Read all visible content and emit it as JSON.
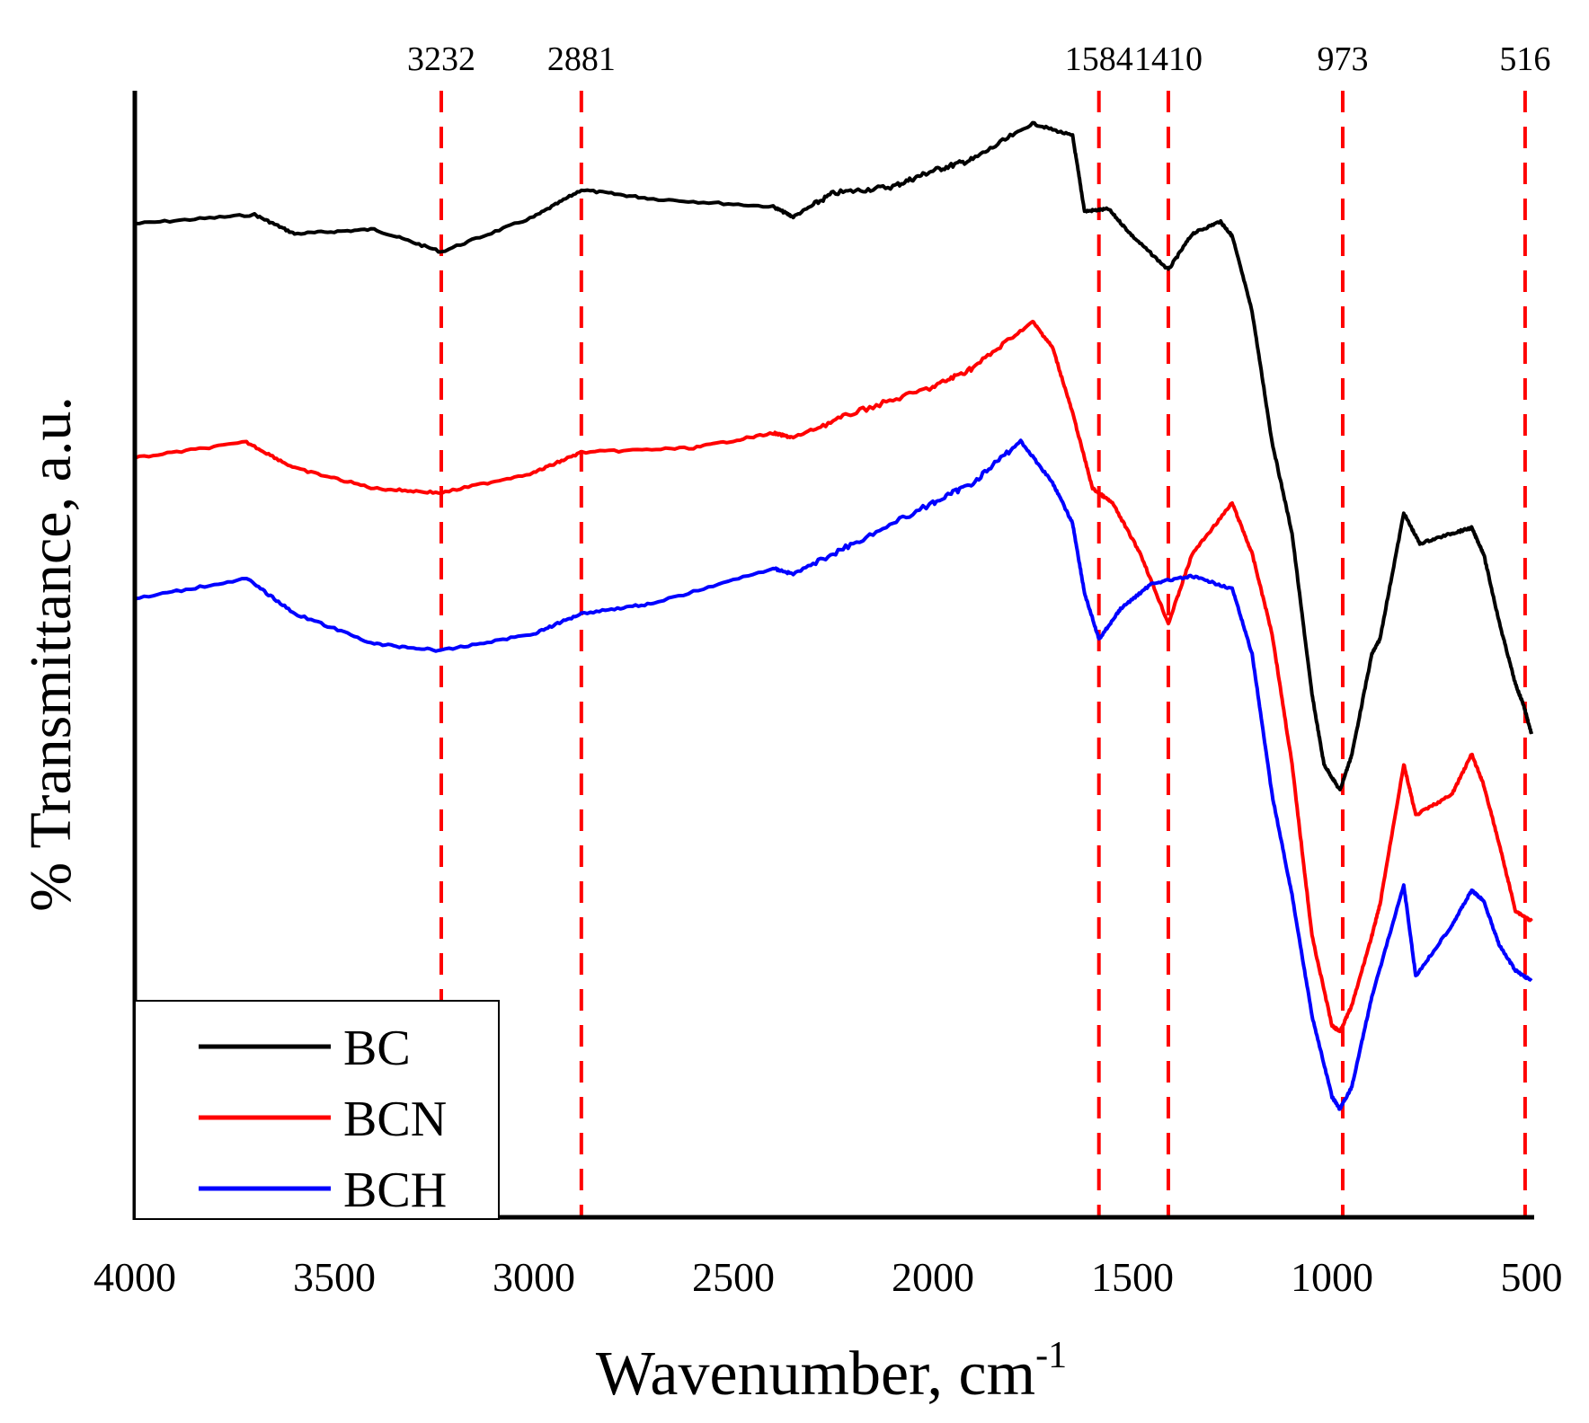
{
  "chart_data": {
    "type": "line",
    "title": "",
    "xlabel": "Wavenumber, cm",
    "xlabel_superscript": "-1",
    "ylabel": "% Transmittance, a.u.",
    "xlim": [
      4000,
      500
    ],
    "ylim": [
      0,
      100
    ],
    "x_reversed": true,
    "grid": false,
    "x_ticks": [
      4000,
      3500,
      3000,
      2500,
      2000,
      1500,
      1000,
      500
    ],
    "x_tick_labels": [
      "4000",
      "3500",
      "3000",
      "2500",
      "2000",
      "1500",
      "1000",
      "500"
    ],
    "legend_position": "bottom-left",
    "reference_lines": {
      "color": "#ff0000",
      "style": "dashed",
      "values": [
        3232,
        2881,
        1584,
        1410,
        973,
        516
      ],
      "labels": [
        "3232",
        "2881",
        "1584",
        "1410",
        "973",
        "516"
      ]
    },
    "series": [
      {
        "name": "BC",
        "color": "#000000",
        "x": [
          4000,
          3700,
          3600,
          3400,
          3232,
          3000,
          2881,
          2700,
          2400,
          2350,
          2250,
          2100,
          2000,
          1900,
          1750,
          1650,
          1620,
          1560,
          1500,
          1410,
          1350,
          1280,
          1250,
          1200,
          1150,
          1100,
          1050,
          1020,
          980,
          950,
          900,
          880,
          820,
          780,
          700,
          650,
          620,
          580,
          540,
          520,
          500
        ],
        "y": [
          88.2,
          89.0,
          87.3,
          87.7,
          85.7,
          88.8,
          91.2,
          90.4,
          89.7,
          88.8,
          90.9,
          91.5,
          92.9,
          93.9,
          97.1,
          96.0,
          89.3,
          89.5,
          87.1,
          84.1,
          87.3,
          88.4,
          87.1,
          80.4,
          68.8,
          60.7,
          46.4,
          40.2,
          37.9,
          41.1,
          50.0,
          51.3,
          62.5,
          59.8,
          60.7,
          61.2,
          58.9,
          52.7,
          47.3,
          45.5,
          42.9
        ]
      },
      {
        "name": "BCN",
        "color": "#ff0000",
        "x": [
          4000,
          3720,
          3600,
          3400,
          3232,
          3000,
          2881,
          2600,
          2400,
          2350,
          2200,
          2000,
          1900,
          1750,
          1700,
          1650,
          1600,
          1550,
          1480,
          1410,
          1350,
          1250,
          1200,
          1150,
          1100,
          1050,
          1000,
          980,
          950,
          900,
          880,
          820,
          790,
          700,
          650,
          620,
          580,
          540,
          500
        ],
        "y": [
          67.4,
          68.8,
          66.5,
          64.7,
          64.3,
          66.1,
          67.9,
          68.3,
          69.6,
          69.2,
          71.4,
          73.7,
          75.4,
          79.5,
          77.2,
          71.4,
          64.7,
          63.4,
          58.9,
          52.7,
          58.9,
          63.4,
          58.9,
          51.8,
          40.2,
          25.0,
          17.0,
          16.5,
          18.8,
          25.0,
          27.7,
          40.2,
          35.7,
          37.5,
          41.1,
          38.4,
          33.0,
          27.2,
          26.3
        ]
      },
      {
        "name": "BCH",
        "color": "#0000ff",
        "x": [
          4000,
          3720,
          3600,
          3400,
          3232,
          3000,
          2881,
          2700,
          2400,
          2350,
          2200,
          2000,
          1900,
          1780,
          1700,
          1650,
          1620,
          1584,
          1530,
          1450,
          1350,
          1250,
          1200,
          1150,
          1100,
          1050,
          1000,
          980,
          950,
          900,
          820,
          790,
          700,
          650,
          620,
          580,
          540,
          500
        ],
        "y": [
          54.9,
          56.7,
          53.6,
          50.9,
          50.3,
          51.8,
          53.6,
          54.5,
          57.6,
          57.1,
          59.8,
          63.4,
          65.2,
          68.9,
          65.2,
          61.6,
          55.4,
          51.3,
          54.0,
          56.3,
          56.9,
          55.8,
          50.0,
          37.5,
          28.6,
          17.9,
          10.7,
          9.6,
          11.6,
          19.6,
          29.5,
          21.4,
          25.9,
          29.0,
          28.1,
          24.1,
          21.9,
          21.0
        ]
      }
    ]
  }
}
